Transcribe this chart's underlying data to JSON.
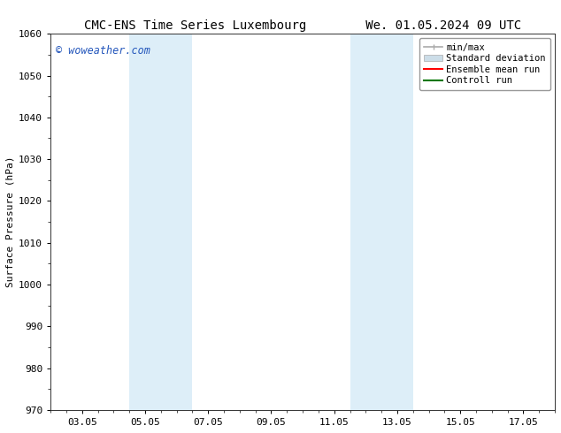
{
  "title_left": "CMC-ENS Time Series Luxembourg",
  "title_right": "We. 01.05.2024 09 UTC",
  "ylabel": "Surface Pressure (hPa)",
  "ylim": [
    970,
    1060
  ],
  "yticks": [
    970,
    980,
    990,
    1000,
    1010,
    1020,
    1030,
    1040,
    1050,
    1060
  ],
  "xlim": [
    0.0,
    16.0
  ],
  "xtick_positions": [
    1.0,
    3.0,
    5.0,
    7.0,
    9.0,
    11.0,
    13.0,
    15.0
  ],
  "xtick_labels": [
    "03.05",
    "05.05",
    "07.05",
    "09.05",
    "11.05",
    "13.05",
    "15.05",
    "17.05"
  ],
  "shaded_bands": [
    {
      "x_start": 2.5,
      "x_end": 4.5
    },
    {
      "x_start": 9.5,
      "x_end": 11.5
    }
  ],
  "shade_color": "#ddeef8",
  "background_color": "#ffffff",
  "watermark_text": "© woweather.com",
  "watermark_color": "#2255bb",
  "legend_entries": [
    {
      "label": "min/max",
      "color": "#aaaaaa",
      "lw": 1.2
    },
    {
      "label": "Standard deviation",
      "color": "#ccdde8",
      "lw": 6
    },
    {
      "label": "Ensemble mean run",
      "color": "#ff0000",
      "lw": 1.5
    },
    {
      "label": "Controll run",
      "color": "#007700",
      "lw": 1.5
    }
  ],
  "title_fontsize": 10,
  "label_fontsize": 8,
  "tick_fontsize": 8,
  "legend_fontsize": 7.5,
  "watermark_fontsize": 8.5
}
